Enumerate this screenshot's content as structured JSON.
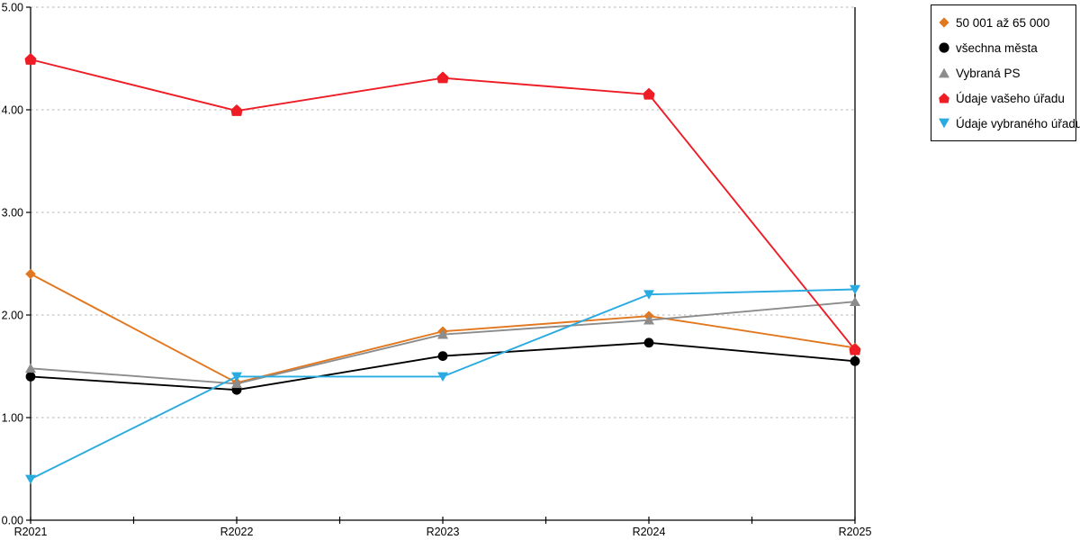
{
  "chart_data": {
    "type": "line",
    "title": "",
    "xlabel": "",
    "ylabel": "",
    "categories": [
      "R2021",
      "R2022",
      "R2023",
      "R2024",
      "R2025"
    ],
    "y_ticks": [
      "0.00",
      "1.00",
      "2.00",
      "3.00",
      "4.00",
      "5.00"
    ],
    "ylim": [
      0,
      5
    ],
    "grid": "horizontal dotted gridlines at each 1.00",
    "legend_position": "outside top-right, boxed",
    "colors": {
      "grid": "#c3c3c3",
      "axis": "#000000"
    },
    "series": [
      {
        "name": "50 001 až 65 000",
        "color": "#E1771E",
        "marker": "diamond",
        "values": [
          2.4,
          1.34,
          1.84,
          1.99,
          1.68
        ]
      },
      {
        "name": "všechna města",
        "color": "#000000",
        "marker": "circle",
        "values": [
          1.4,
          1.27,
          1.6,
          1.73,
          1.55
        ]
      },
      {
        "name": "Vybraná PS",
        "color": "#8C8C8C",
        "marker": "triangle-up",
        "values": [
          1.48,
          1.33,
          1.81,
          1.95,
          2.13
        ]
      },
      {
        "name": "Údaje vašeho úřadu",
        "color": "#EE1C25",
        "marker": "pentagon-up",
        "values": [
          4.49,
          3.99,
          4.31,
          4.15,
          1.66
        ]
      },
      {
        "name": "Údaje vybraného úřadu",
        "color": "#29ABE2",
        "marker": "triangle-down",
        "values": [
          0.4,
          1.4,
          1.4,
          2.2,
          2.25
        ]
      }
    ]
  }
}
